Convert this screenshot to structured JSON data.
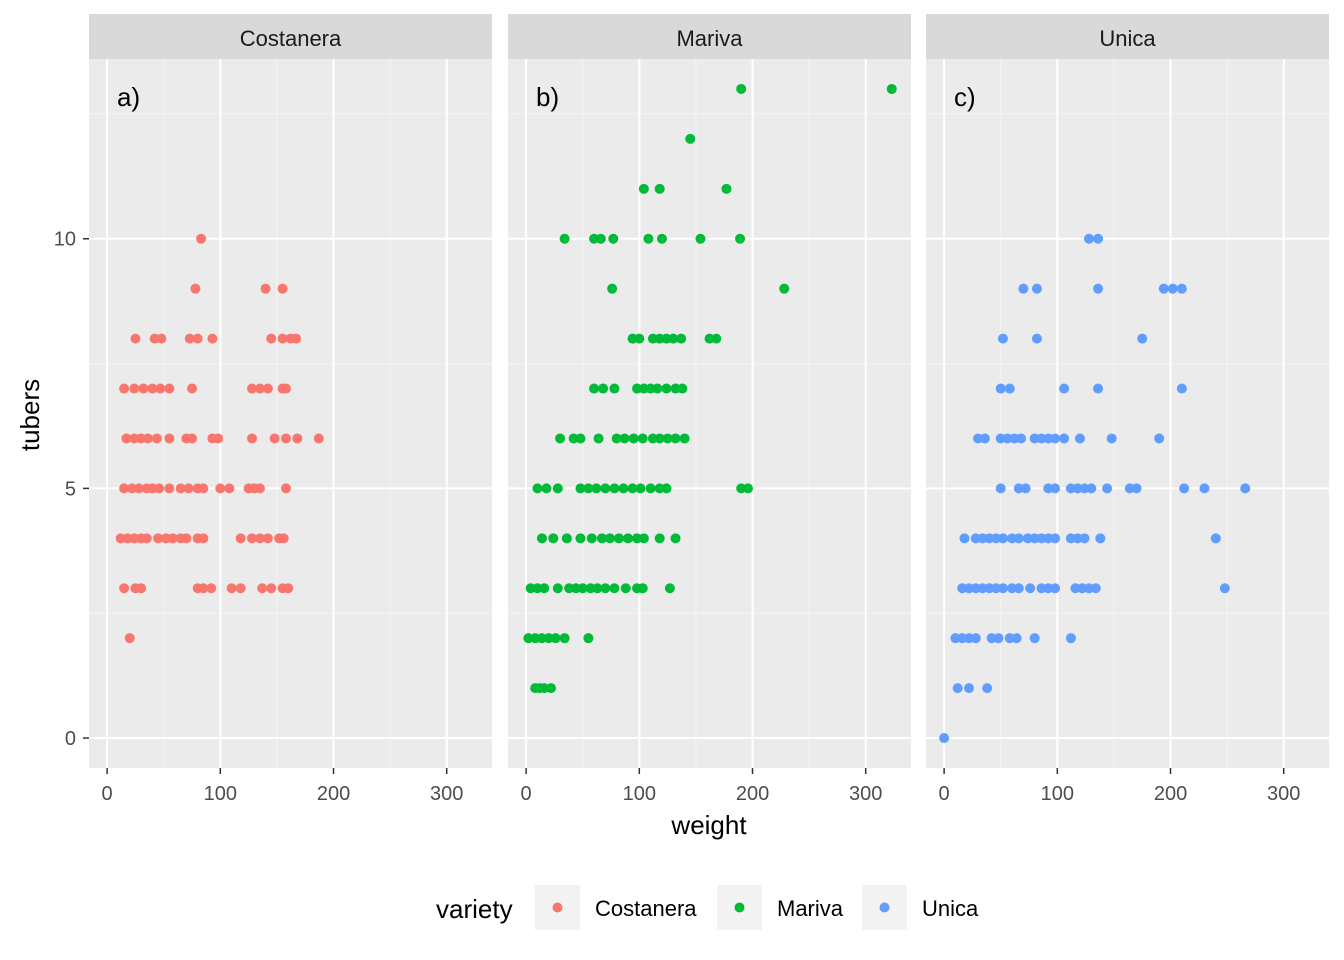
{
  "chart_data": {
    "type": "scatter",
    "facet_by": "variety",
    "xlabel": "weight",
    "ylabel": "tubers",
    "xlim": [
      -16,
      340
    ],
    "ylim": [
      -0.6,
      13.6
    ],
    "x_ticks": [
      0,
      100,
      200,
      300
    ],
    "x_tick_labels": [
      "0",
      "100",
      "200",
      "300"
    ],
    "y_ticks": [
      0,
      5,
      10
    ],
    "y_tick_labels": [
      "0",
      "5",
      "10"
    ],
    "grid": true,
    "legend": {
      "title": "variety",
      "position": "bottom",
      "entries": [
        "Costanera",
        "Mariva",
        "Unica"
      ]
    },
    "panels": [
      {
        "strip": "Costanera",
        "tag": "a)",
        "color": "#F8766D",
        "points": [
          [
            20,
            2
          ],
          [
            15,
            3
          ],
          [
            25,
            3
          ],
          [
            30,
            3
          ],
          [
            80,
            3
          ],
          [
            85,
            3
          ],
          [
            92,
            3
          ],
          [
            110,
            3
          ],
          [
            118,
            3
          ],
          [
            137,
            3
          ],
          [
            145,
            3
          ],
          [
            155,
            3
          ],
          [
            160,
            3
          ],
          [
            12,
            4
          ],
          [
            18,
            4
          ],
          [
            24,
            4
          ],
          [
            30,
            4
          ],
          [
            35,
            4
          ],
          [
            45,
            4
          ],
          [
            52,
            4
          ],
          [
            58,
            4
          ],
          [
            65,
            4
          ],
          [
            70,
            4
          ],
          [
            80,
            4
          ],
          [
            85,
            4
          ],
          [
            118,
            4
          ],
          [
            128,
            4
          ],
          [
            135,
            4
          ],
          [
            142,
            4
          ],
          [
            152,
            4
          ],
          [
            156,
            4
          ],
          [
            15,
            5
          ],
          [
            22,
            5
          ],
          [
            28,
            5
          ],
          [
            35,
            5
          ],
          [
            40,
            5
          ],
          [
            46,
            5
          ],
          [
            55,
            5
          ],
          [
            65,
            5
          ],
          [
            72,
            5
          ],
          [
            80,
            5
          ],
          [
            85,
            5
          ],
          [
            100,
            5
          ],
          [
            108,
            5
          ],
          [
            125,
            5
          ],
          [
            130,
            5
          ],
          [
            135,
            5
          ],
          [
            158,
            5
          ],
          [
            17,
            6
          ],
          [
            24,
            6
          ],
          [
            30,
            6
          ],
          [
            36,
            6
          ],
          [
            44,
            6
          ],
          [
            55,
            6
          ],
          [
            70,
            6
          ],
          [
            75,
            6
          ],
          [
            93,
            6
          ],
          [
            98,
            6
          ],
          [
            128,
            6
          ],
          [
            148,
            6
          ],
          [
            158,
            6
          ],
          [
            168,
            6
          ],
          [
            187,
            6
          ],
          [
            15,
            7
          ],
          [
            24,
            7
          ],
          [
            32,
            7
          ],
          [
            40,
            7
          ],
          [
            47,
            7
          ],
          [
            55,
            7
          ],
          [
            75,
            7
          ],
          [
            128,
            7
          ],
          [
            135,
            7
          ],
          [
            142,
            7
          ],
          [
            155,
            7
          ],
          [
            158,
            7
          ],
          [
            25,
            8
          ],
          [
            42,
            8
          ],
          [
            48,
            8
          ],
          [
            73,
            8
          ],
          [
            80,
            8
          ],
          [
            93,
            8
          ],
          [
            145,
            8
          ],
          [
            155,
            8
          ],
          [
            162,
            8
          ],
          [
            167,
            8
          ],
          [
            78,
            9
          ],
          [
            140,
            9
          ],
          [
            155,
            9
          ],
          [
            83,
            10
          ]
        ]
      },
      {
        "strip": "Mariva",
        "tag": "b)",
        "color": "#00BA38",
        "points": [
          [
            8,
            1
          ],
          [
            12,
            1
          ],
          [
            16,
            1
          ],
          [
            22,
            1
          ],
          [
            2,
            2
          ],
          [
            8,
            2
          ],
          [
            14,
            2
          ],
          [
            20,
            2
          ],
          [
            26,
            2
          ],
          [
            34,
            2
          ],
          [
            55,
            2
          ],
          [
            4,
            3
          ],
          [
            10,
            3
          ],
          [
            16,
            3
          ],
          [
            28,
            3
          ],
          [
            38,
            3
          ],
          [
            44,
            3
          ],
          [
            50,
            3
          ],
          [
            57,
            3
          ],
          [
            63,
            3
          ],
          [
            70,
            3
          ],
          [
            78,
            3
          ],
          [
            88,
            3
          ],
          [
            98,
            3
          ],
          [
            103,
            3
          ],
          [
            127,
            3
          ],
          [
            14,
            4
          ],
          [
            24,
            4
          ],
          [
            36,
            4
          ],
          [
            48,
            4
          ],
          [
            58,
            4
          ],
          [
            67,
            4
          ],
          [
            74,
            4
          ],
          [
            82,
            4
          ],
          [
            90,
            4
          ],
          [
            98,
            4
          ],
          [
            104,
            4
          ],
          [
            118,
            4
          ],
          [
            132,
            4
          ],
          [
            10,
            5
          ],
          [
            18,
            5
          ],
          [
            28,
            5
          ],
          [
            48,
            5
          ],
          [
            55,
            5
          ],
          [
            62,
            5
          ],
          [
            70,
            5
          ],
          [
            78,
            5
          ],
          [
            86,
            5
          ],
          [
            94,
            5
          ],
          [
            101,
            5
          ],
          [
            110,
            5
          ],
          [
            118,
            5
          ],
          [
            124,
            5
          ],
          [
            190,
            5
          ],
          [
            196,
            5
          ],
          [
            30,
            6
          ],
          [
            42,
            6
          ],
          [
            48,
            6
          ],
          [
            64,
            6
          ],
          [
            80,
            6
          ],
          [
            87,
            6
          ],
          [
            95,
            6
          ],
          [
            103,
            6
          ],
          [
            112,
            6
          ],
          [
            118,
            6
          ],
          [
            125,
            6
          ],
          [
            132,
            6
          ],
          [
            140,
            6
          ],
          [
            60,
            7
          ],
          [
            68,
            7
          ],
          [
            78,
            7
          ],
          [
            98,
            7
          ],
          [
            104,
            7
          ],
          [
            110,
            7
          ],
          [
            116,
            7
          ],
          [
            124,
            7
          ],
          [
            132,
            7
          ],
          [
            138,
            7
          ],
          [
            94,
            8
          ],
          [
            100,
            8
          ],
          [
            112,
            8
          ],
          [
            118,
            8
          ],
          [
            124,
            8
          ],
          [
            130,
            8
          ],
          [
            137,
            8
          ],
          [
            162,
            8
          ],
          [
            168,
            8
          ],
          [
            76,
            9
          ],
          [
            228,
            9
          ],
          [
            34,
            10
          ],
          [
            60,
            10
          ],
          [
            66,
            10
          ],
          [
            77,
            10
          ],
          [
            108,
            10
          ],
          [
            120,
            10
          ],
          [
            154,
            10
          ],
          [
            189,
            10
          ],
          [
            104,
            11
          ],
          [
            118,
            11
          ],
          [
            177,
            11
          ],
          [
            145,
            12
          ],
          [
            190,
            13
          ],
          [
            323,
            13
          ]
        ]
      },
      {
        "strip": "Unica",
        "tag": "c)",
        "color": "#619CFF",
        "points": [
          [
            0,
            0
          ],
          [
            12,
            1
          ],
          [
            22,
            1
          ],
          [
            38,
            1
          ],
          [
            10,
            2
          ],
          [
            16,
            2
          ],
          [
            22,
            2
          ],
          [
            28,
            2
          ],
          [
            42,
            2
          ],
          [
            48,
            2
          ],
          [
            58,
            2
          ],
          [
            64,
            2
          ],
          [
            80,
            2
          ],
          [
            112,
            2
          ],
          [
            16,
            3
          ],
          [
            22,
            3
          ],
          [
            28,
            3
          ],
          [
            34,
            3
          ],
          [
            40,
            3
          ],
          [
            46,
            3
          ],
          [
            52,
            3
          ],
          [
            60,
            3
          ],
          [
            66,
            3
          ],
          [
            76,
            3
          ],
          [
            86,
            3
          ],
          [
            92,
            3
          ],
          [
            98,
            3
          ],
          [
            116,
            3
          ],
          [
            122,
            3
          ],
          [
            128,
            3
          ],
          [
            134,
            3
          ],
          [
            248,
            3
          ],
          [
            18,
            4
          ],
          [
            28,
            4
          ],
          [
            34,
            4
          ],
          [
            40,
            4
          ],
          [
            46,
            4
          ],
          [
            52,
            4
          ],
          [
            60,
            4
          ],
          [
            66,
            4
          ],
          [
            74,
            4
          ],
          [
            80,
            4
          ],
          [
            86,
            4
          ],
          [
            92,
            4
          ],
          [
            98,
            4
          ],
          [
            112,
            4
          ],
          [
            118,
            4
          ],
          [
            124,
            4
          ],
          [
            138,
            4
          ],
          [
            240,
            4
          ],
          [
            50,
            5
          ],
          [
            66,
            5
          ],
          [
            72,
            5
          ],
          [
            92,
            5
          ],
          [
            98,
            5
          ],
          [
            112,
            5
          ],
          [
            118,
            5
          ],
          [
            124,
            5
          ],
          [
            130,
            5
          ],
          [
            144,
            5
          ],
          [
            164,
            5
          ],
          [
            170,
            5
          ],
          [
            212,
            5
          ],
          [
            230,
            5
          ],
          [
            266,
            5
          ],
          [
            30,
            6
          ],
          [
            36,
            6
          ],
          [
            50,
            6
          ],
          [
            56,
            6
          ],
          [
            62,
            6
          ],
          [
            68,
            6
          ],
          [
            80,
            6
          ],
          [
            86,
            6
          ],
          [
            92,
            6
          ],
          [
            98,
            6
          ],
          [
            106,
            6
          ],
          [
            120,
            6
          ],
          [
            148,
            6
          ],
          [
            190,
            6
          ],
          [
            50,
            7
          ],
          [
            58,
            7
          ],
          [
            106,
            7
          ],
          [
            136,
            7
          ],
          [
            210,
            7
          ],
          [
            52,
            8
          ],
          [
            82,
            8
          ],
          [
            175,
            8
          ],
          [
            70,
            9
          ],
          [
            82,
            9
          ],
          [
            136,
            9
          ],
          [
            194,
            9
          ],
          [
            202,
            9
          ],
          [
            210,
            9
          ],
          [
            128,
            10
          ],
          [
            136,
            10
          ]
        ]
      }
    ]
  }
}
